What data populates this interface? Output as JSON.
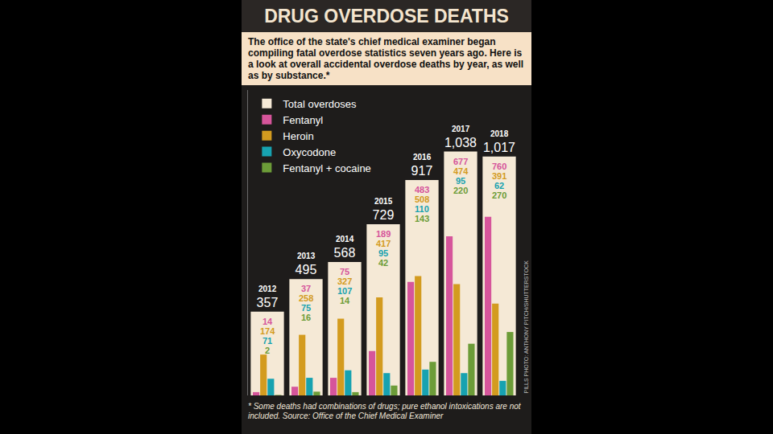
{
  "chart_data": {
    "type": "bar",
    "title": "DRUG OVERDOSE DEATHS",
    "subtitle": "The office of the state's chief medical examiner began compiling fatal overdose statistics seven years ago. Here is a look at overall accidental overdose deaths by year, as well as by substance.*",
    "categories": [
      "2012",
      "2013",
      "2014",
      "2015",
      "2016",
      "2017",
      "2018"
    ],
    "series": [
      {
        "name": "Total overdoses",
        "color": "#f5e9d6",
        "values": [
          357,
          495,
          568,
          729,
          917,
          1038,
          1017
        ],
        "value_labels": [
          "357",
          "495",
          "568",
          "729",
          "917",
          "1,038",
          "1,017"
        ]
      },
      {
        "name": "Fentanyl",
        "color": "#d6559b",
        "values": [
          14,
          37,
          75,
          189,
          483,
          677,
          760
        ]
      },
      {
        "name": "Heroin",
        "color": "#d39b1f",
        "values": [
          174,
          258,
          327,
          417,
          508,
          474,
          391
        ]
      },
      {
        "name": "Oxycodone",
        "color": "#17a2b0",
        "values": [
          71,
          75,
          107,
          95,
          110,
          95,
          62
        ]
      },
      {
        "name": "Fentanyl + cocaine",
        "color": "#6c9c38",
        "values": [
          2,
          16,
          14,
          42,
          143,
          220,
          270
        ]
      }
    ],
    "ylim": [
      0,
      1300
    ],
    "grid": false,
    "legend": "top-left",
    "data_labels": true,
    "tick_labels": false,
    "annotations": [
      "* Some deaths had combinations of drugs; pure ethanol intoxications are not included. Source: Office of the Chief Medical Examiner",
      "PILLS PHOTO: ANTHONY PITCH/SHUTTERSTOCK"
    ]
  }
}
